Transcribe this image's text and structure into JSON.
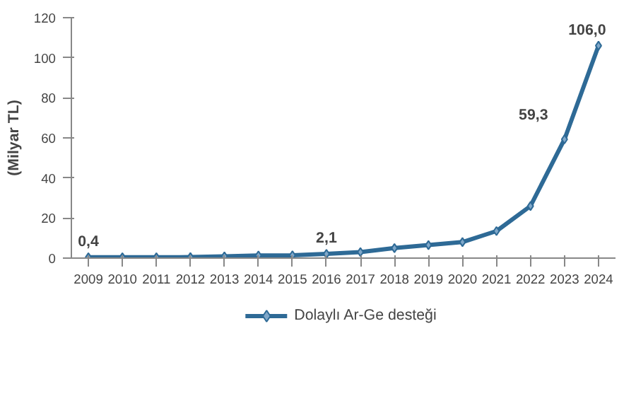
{
  "chart_data": {
    "type": "line",
    "ylabel": "(Milyar TL)",
    "categories": [
      "2009",
      "2010",
      "2011",
      "2012",
      "2013",
      "2014",
      "2015",
      "2016",
      "2017",
      "2018",
      "2019",
      "2020",
      "2021",
      "2022",
      "2023",
      "2024"
    ],
    "series": [
      {
        "name": "Dolaylı Ar-Ge desteği",
        "color": "#2e6a96",
        "values": [
          0.4,
          0.4,
          0.4,
          0.5,
          0.9,
          1.3,
          1.4,
          2.1,
          3,
          5,
          6.5,
          8,
          13.5,
          26,
          59.3,
          106.0
        ],
        "value_labels": [
          "0,4",
          null,
          null,
          null,
          null,
          null,
          null,
          "2,1",
          null,
          null,
          null,
          null,
          null,
          null,
          "59,3",
          "106,0"
        ]
      }
    ],
    "ylim": [
      0,
      120
    ],
    "yticks": [
      0,
      20,
      40,
      60,
      80,
      100,
      120
    ],
    "grid": false,
    "legend": "bottom",
    "marker": "diamond",
    "line_style": "solid"
  }
}
